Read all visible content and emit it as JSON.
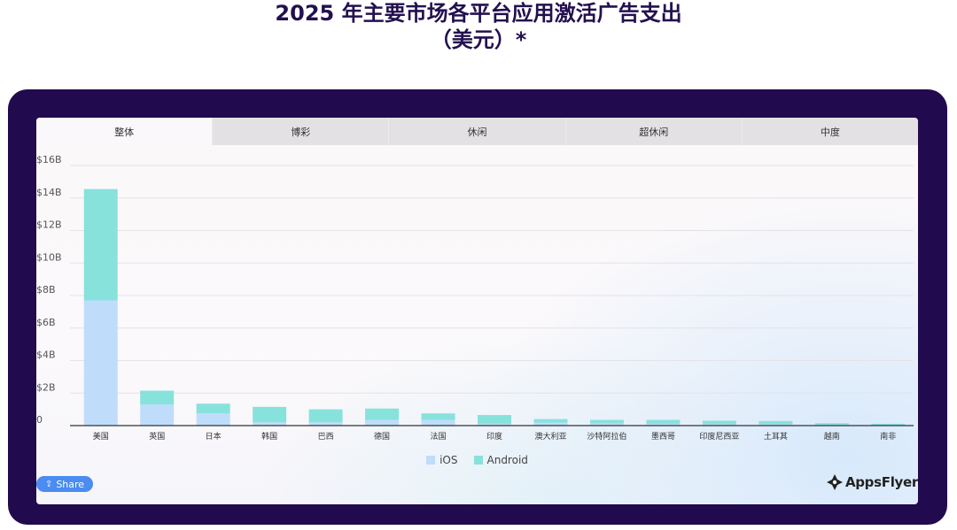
{
  "title_line1": "2025 年主要市场各平台应用激活广告支出",
  "title_line2": "（美元）*",
  "tabs": [
    {
      "label": "整体",
      "active": true
    },
    {
      "label": "博彩",
      "active": false
    },
    {
      "label": "休闲",
      "active": false
    },
    {
      "label": "超休闲",
      "active": false
    },
    {
      "label": "中度",
      "active": false
    }
  ],
  "share_label": "Share",
  "brand_name": "AppsFlyer",
  "colors": {
    "ios": "#bfdcfb",
    "android": "#87e2dc",
    "frame": "#210a4d",
    "title": "#23104f",
    "share": "#4a8cf0"
  },
  "chart_data": {
    "type": "bar",
    "stacked": true,
    "categories": [
      "美国",
      "英国",
      "日本",
      "韩国",
      "巴西",
      "德国",
      "法国",
      "印度",
      "澳大利亚",
      "沙特阿拉伯",
      "墨西哥",
      "印度尼西亚",
      "土耳其",
      "越南",
      "南非"
    ],
    "series": [
      {
        "name": "iOS",
        "values": [
          7.7,
          1.3,
          0.75,
          0.2,
          0.2,
          0.35,
          0.35,
          0.1,
          0.18,
          0.12,
          0.1,
          0.08,
          0.08,
          0.04,
          0.03
        ]
      },
      {
        "name": "Android",
        "values": [
          6.85,
          0.85,
          0.6,
          0.95,
          0.8,
          0.7,
          0.4,
          0.55,
          0.22,
          0.23,
          0.25,
          0.22,
          0.2,
          0.11,
          0.08
        ]
      }
    ],
    "y_ticks": [
      "0",
      "$2B",
      "$4B",
      "$6B",
      "$8B",
      "$10B",
      "$12B",
      "$14B",
      "$16B"
    ],
    "ylim": [
      0,
      16
    ],
    "grid": true,
    "legend_position": "bottom-center"
  }
}
